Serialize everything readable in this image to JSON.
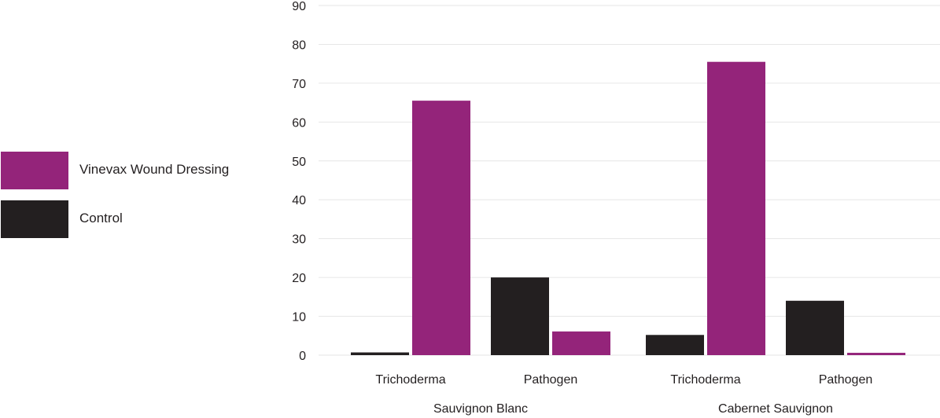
{
  "colors": {
    "vinevax": "#94247a",
    "control": "#231f20",
    "grid": "#e6e6e6"
  },
  "legend": {
    "items": [
      {
        "label": "Vinevax Wound Dressing",
        "color": "#94247a"
      },
      {
        "label": "Control",
        "color": "#231f20"
      }
    ]
  },
  "chart_data": {
    "type": "bar",
    "title": "",
    "xlabel": "",
    "ylabel": "",
    "ylim": [
      0,
      90
    ],
    "yticks": [
      0,
      10,
      20,
      30,
      40,
      50,
      60,
      70,
      80,
      90
    ],
    "grid": true,
    "legend_position": "left",
    "groups": [
      "Sauvignon Blanc",
      "Cabernet Sauvignon"
    ],
    "categories": [
      "Trichoderma",
      "Pathogen",
      "Trichoderma",
      "Pathogen"
    ],
    "series": [
      {
        "name": "Control",
        "color": "#231f20",
        "values": [
          0.7,
          20,
          5.2,
          14
        ]
      },
      {
        "name": "Vinevax Wound Dressing",
        "color": "#94247a",
        "values": [
          65.5,
          6.1,
          75.5,
          0.6
        ]
      }
    ]
  }
}
